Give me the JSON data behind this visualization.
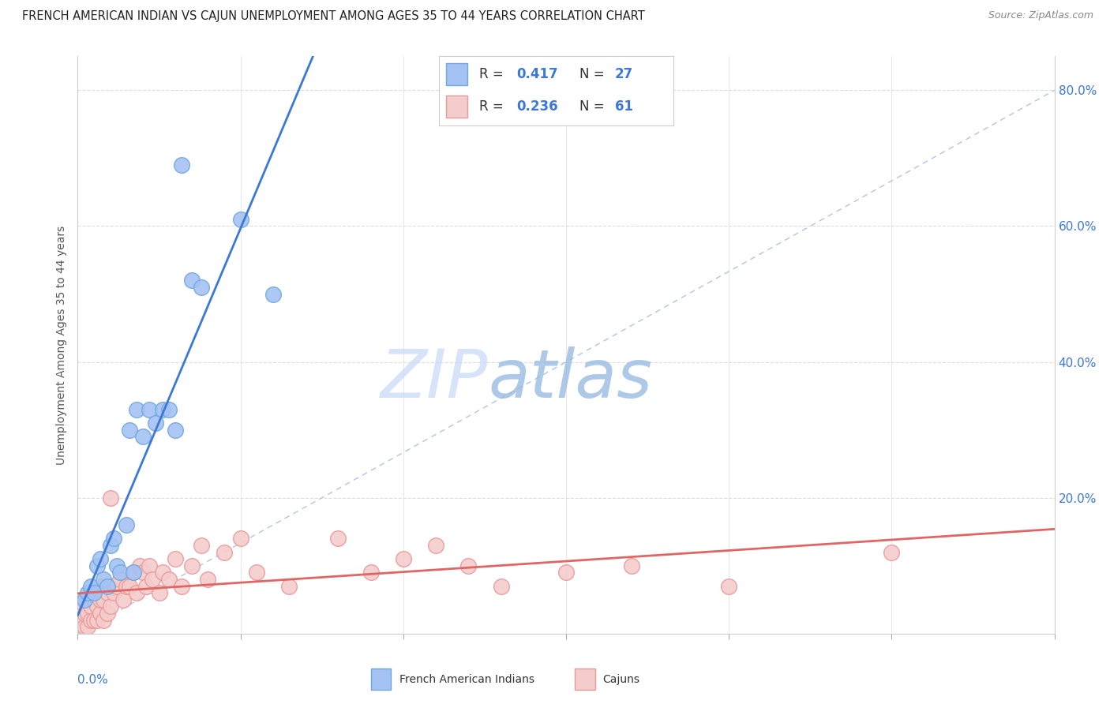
{
  "title": "FRENCH AMERICAN INDIAN VS CAJUN UNEMPLOYMENT AMONG AGES 35 TO 44 YEARS CORRELATION CHART",
  "source": "Source: ZipAtlas.com",
  "ylabel": "Unemployment Among Ages 35 to 44 years",
  "legend_r1": "R = 0.417",
  "legend_n1": "N = 27",
  "legend_r2": "R = 0.236",
  "legend_n2": "N = 61",
  "legend_label1": "French American Indians",
  "legend_label2": "Cajuns",
  "blue_edge": "#6fa8dc",
  "blue_face": "#a4c2f4",
  "pink_edge": "#ea9999",
  "pink_face": "#f4cccc",
  "blue_line": "#3c78d8",
  "pink_line": "#e06666",
  "ref_line": "#aec6e8",
  "watermark_zip": "#c9daf8",
  "watermark_atlas": "#93b8e0",
  "text_blue": "#3c78d8",
  "text_dark": "#333333",
  "text_gray": "#888888",
  "grid_color": "#dddddd",
  "xlim": [
    0.0,
    0.3
  ],
  "ylim": [
    0.0,
    0.85
  ],
  "blue_x": [
    0.002,
    0.003,
    0.004,
    0.005,
    0.006,
    0.007,
    0.008,
    0.009,
    0.01,
    0.011,
    0.012,
    0.013,
    0.015,
    0.016,
    0.017,
    0.018,
    0.02,
    0.022,
    0.024,
    0.026,
    0.028,
    0.03,
    0.032,
    0.035,
    0.038,
    0.05,
    0.06
  ],
  "blue_y": [
    0.05,
    0.06,
    0.07,
    0.06,
    0.1,
    0.11,
    0.08,
    0.07,
    0.13,
    0.14,
    0.1,
    0.09,
    0.16,
    0.3,
    0.09,
    0.33,
    0.29,
    0.33,
    0.31,
    0.33,
    0.33,
    0.3,
    0.69,
    0.52,
    0.51,
    0.61,
    0.5
  ],
  "pink_x": [
    0.001,
    0.001,
    0.002,
    0.002,
    0.002,
    0.003,
    0.003,
    0.003,
    0.004,
    0.004,
    0.004,
    0.005,
    0.005,
    0.006,
    0.006,
    0.006,
    0.007,
    0.007,
    0.007,
    0.008,
    0.008,
    0.009,
    0.009,
    0.01,
    0.01,
    0.011,
    0.012,
    0.013,
    0.014,
    0.015,
    0.016,
    0.017,
    0.018,
    0.019,
    0.02,
    0.021,
    0.022,
    0.023,
    0.025,
    0.026,
    0.028,
    0.03,
    0.032,
    0.035,
    0.038,
    0.04,
    0.045,
    0.05,
    0.055,
    0.065,
    0.08,
    0.09,
    0.1,
    0.11,
    0.12,
    0.13,
    0.15,
    0.17,
    0.2,
    0.25,
    0.01
  ],
  "pink_y": [
    0.02,
    0.04,
    0.01,
    0.03,
    0.05,
    0.01,
    0.03,
    0.05,
    0.02,
    0.04,
    0.06,
    0.02,
    0.05,
    0.02,
    0.04,
    0.06,
    0.03,
    0.05,
    0.07,
    0.02,
    0.05,
    0.03,
    0.06,
    0.04,
    0.07,
    0.06,
    0.07,
    0.08,
    0.05,
    0.07,
    0.07,
    0.09,
    0.06,
    0.1,
    0.09,
    0.07,
    0.1,
    0.08,
    0.06,
    0.09,
    0.08,
    0.11,
    0.07,
    0.1,
    0.13,
    0.08,
    0.12,
    0.14,
    0.09,
    0.07,
    0.14,
    0.09,
    0.11,
    0.13,
    0.1,
    0.07,
    0.09,
    0.1,
    0.07,
    0.12,
    0.2
  ],
  "title_fontsize": 10.5,
  "source_fontsize": 9,
  "tick_fontsize": 11,
  "ylabel_fontsize": 10,
  "legend_fontsize": 12,
  "dot_size": 200
}
